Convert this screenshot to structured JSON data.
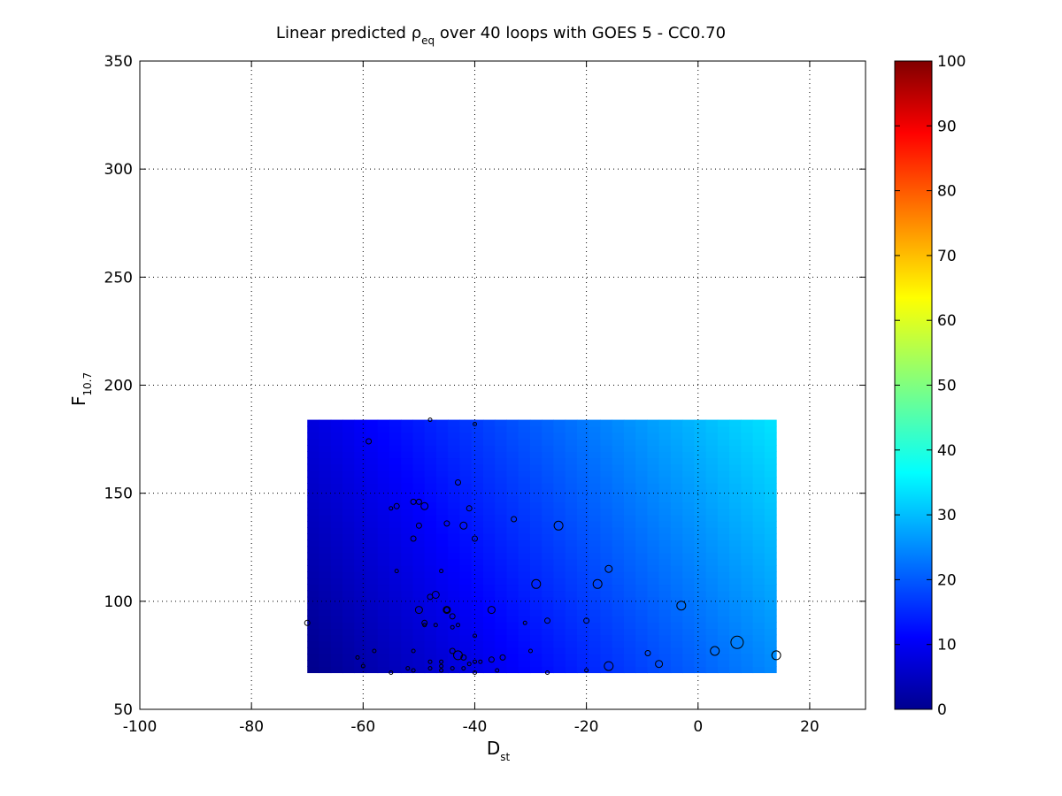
{
  "chart_data": {
    "type": "scatter",
    "title": {
      "prefix": "Linear predicted ",
      "symbol": "ρ",
      "symbol_sub": "eq",
      "suffix": " over 40 loops with GOES 5 - CC0.70"
    },
    "xlabel": {
      "main": "D",
      "sub": "st"
    },
    "ylabel": {
      "main": "F",
      "sub": "10.7"
    },
    "xlim": [
      -100,
      30
    ],
    "ylim": [
      50,
      350
    ],
    "xticks": [
      -100,
      -80,
      -60,
      -40,
      -20,
      0,
      20
    ],
    "yticks": [
      50,
      100,
      150,
      200,
      250,
      300,
      350
    ],
    "grid": true,
    "grid_style": "dotted",
    "surface": {
      "x_range": [
        -70,
        14
      ],
      "y_range": [
        67,
        184
      ],
      "model": "linear",
      "value_at_corners": {
        "x_min_y_min": 1,
        "x_max_y_min": 26,
        "x_min_y_max": 9,
        "x_max_y_max": 35
      },
      "n_bands": 40
    },
    "colorbar": {
      "colormap": "jet",
      "range": [
        0,
        100
      ],
      "ticks": [
        0,
        10,
        20,
        30,
        40,
        50,
        60,
        70,
        80,
        90,
        100
      ],
      "position": "right"
    },
    "points": [
      [
        -70,
        90,
        3
      ],
      [
        -61,
        74,
        2
      ],
      [
        -60,
        70,
        2
      ],
      [
        -59,
        174,
        3
      ],
      [
        -58,
        77,
        2
      ],
      [
        -55,
        143,
        2
      ],
      [
        -55,
        67,
        2
      ],
      [
        -54,
        144,
        3
      ],
      [
        -54,
        114,
        2
      ],
      [
        -52,
        69,
        2
      ],
      [
        -51,
        146,
        3
      ],
      [
        -51,
        129,
        3
      ],
      [
        -51,
        77,
        2
      ],
      [
        -51,
        68,
        2
      ],
      [
        -50,
        146,
        3
      ],
      [
        -50,
        135,
        3
      ],
      [
        -50,
        96,
        4
      ],
      [
        -49,
        144,
        4
      ],
      [
        -49,
        90,
        3
      ],
      [
        -49,
        89,
        2
      ],
      [
        -48,
        184,
        2
      ],
      [
        -48,
        102,
        3
      ],
      [
        -48,
        72,
        2
      ],
      [
        -48,
        69,
        2
      ],
      [
        -47,
        103,
        4
      ],
      [
        -47,
        89,
        2
      ],
      [
        -46,
        114,
        2
      ],
      [
        -46,
        72,
        2
      ],
      [
        -46,
        70,
        2
      ],
      [
        -46,
        68,
        2
      ],
      [
        -45,
        136,
        3
      ],
      [
        -45,
        96,
        4
      ],
      [
        -45,
        96,
        3
      ],
      [
        -44,
        93,
        3
      ],
      [
        -44,
        88,
        2
      ],
      [
        -44,
        77,
        3
      ],
      [
        -44,
        69,
        2
      ],
      [
        -43,
        155,
        3
      ],
      [
        -43,
        89,
        2
      ],
      [
        -43,
        75,
        5
      ],
      [
        -42,
        135,
        4
      ],
      [
        -42,
        74,
        3
      ],
      [
        -42,
        69,
        2
      ],
      [
        -41,
        143,
        3
      ],
      [
        -41,
        71,
        2
      ],
      [
        -40,
        182,
        2
      ],
      [
        -40,
        129,
        3
      ],
      [
        -40,
        84,
        2
      ],
      [
        -40,
        72,
        2
      ],
      [
        -40,
        67,
        2
      ],
      [
        -39,
        72,
        2
      ],
      [
        -37,
        96,
        4
      ],
      [
        -37,
        73,
        3
      ],
      [
        -36,
        68,
        2
      ],
      [
        -35,
        74,
        3
      ],
      [
        -33,
        138,
        3
      ],
      [
        -31,
        90,
        2
      ],
      [
        -30,
        77,
        2
      ],
      [
        -29,
        108,
        5
      ],
      [
        -27,
        91,
        3
      ],
      [
        -27,
        67,
        2
      ],
      [
        -25,
        135,
        5
      ],
      [
        -20,
        91,
        3
      ],
      [
        -20,
        68,
        2
      ],
      [
        -18,
        108,
        5
      ],
      [
        -16,
        115,
        4
      ],
      [
        -16,
        70,
        5
      ],
      [
        -9,
        76,
        3
      ],
      [
        -7,
        71,
        4
      ],
      [
        -3,
        98,
        5
      ],
      [
        3,
        77,
        5
      ],
      [
        7,
        81,
        7
      ],
      [
        14,
        75,
        5
      ]
    ]
  }
}
